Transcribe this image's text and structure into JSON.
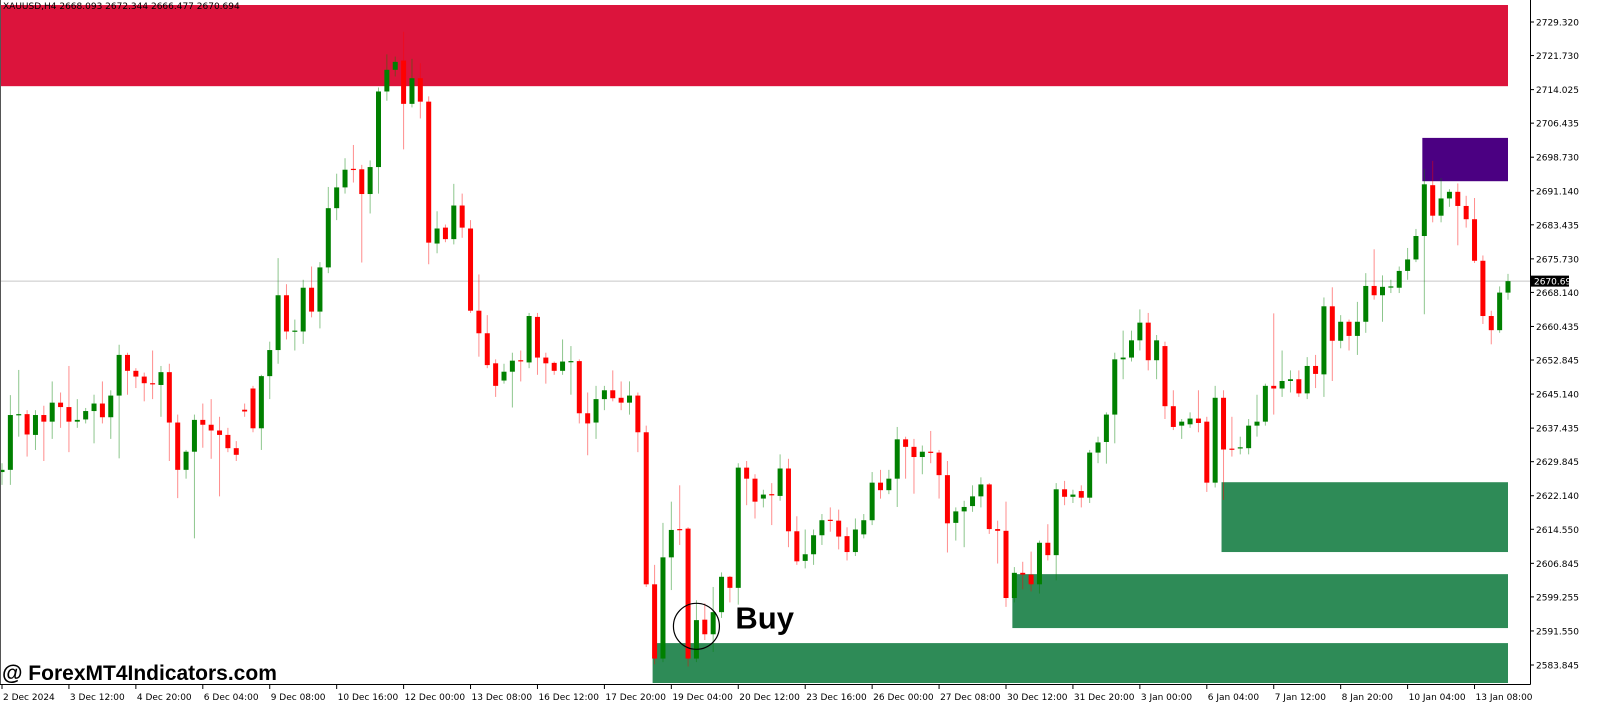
{
  "chart_data": {
    "type": "candlestick",
    "title": "XAUUSD,H4  2668.093 2672.344 2666.477 2670.694",
    "symbol": "XAUUSD",
    "timeframe": "H4",
    "current_price": "2670.694",
    "ylim": [
      2579.5,
      2735.0
    ],
    "grid": false,
    "colors": {
      "bull": "#008000",
      "bear": "#FF0000",
      "supply_zone": "#DC143C",
      "upper_zone": "#4B0082",
      "demand_zone": "#2E8B57",
      "current_price_line": "#C8C8C8",
      "current_price_label_bg": "#000000"
    },
    "y_ticks": [
      "2729.320",
      "2721.730",
      "2714.025",
      "2706.435",
      "2698.730",
      "2691.140",
      "2683.435",
      "2675.730",
      "2668.140",
      "2660.435",
      "2652.845",
      "2645.140",
      "2637.435",
      "2629.845",
      "2622.140",
      "2614.550",
      "2606.845",
      "2599.255",
      "2591.550",
      "2583.845"
    ],
    "x_ticks": [
      {
        "bar": 0,
        "label": "2 Dec 2024"
      },
      {
        "bar": 8,
        "label": "3 Dec 12:00"
      },
      {
        "bar": 16,
        "label": "4 Dec 20:00"
      },
      {
        "bar": 24,
        "label": "6 Dec 04:00"
      },
      {
        "bar": 32,
        "label": "9 Dec 08:00"
      },
      {
        "bar": 40,
        "label": "10 Dec 16:00"
      },
      {
        "bar": 48,
        "label": "12 Dec 00:00"
      },
      {
        "bar": 56,
        "label": "13 Dec 08:00"
      },
      {
        "bar": 64,
        "label": "16 Dec 12:00"
      },
      {
        "bar": 72,
        "label": "17 Dec 20:00"
      },
      {
        "bar": 80,
        "label": "19 Dec 04:00"
      },
      {
        "bar": 88,
        "label": "20 Dec 12:00"
      },
      {
        "bar": 96,
        "label": "23 Dec 16:00"
      },
      {
        "bar": 104,
        "label": "26 Dec 00:00"
      },
      {
        "bar": 112,
        "label": "27 Dec 08:00"
      },
      {
        "bar": 120,
        "label": "30 Dec 12:00"
      },
      {
        "bar": 128,
        "label": "31 Dec 20:00"
      },
      {
        "bar": 136,
        "label": "3 Jan 00:00"
      },
      {
        "bar": 144,
        "label": "6 Jan 04:00"
      },
      {
        "bar": 152,
        "label": "7 Jan 12:00"
      },
      {
        "bar": 160,
        "label": "8 Jan 20:00"
      },
      {
        "bar": 168,
        "label": "10 Jan 04:00"
      },
      {
        "bar": 176,
        "label": "13 Jan 08:00"
      }
    ],
    "zones": [
      {
        "name": "supply-zone",
        "color": "#DC143C",
        "start_bar": 0,
        "top": 2733.2,
        "bottom": 2714.8
      },
      {
        "name": "upper-zone",
        "color": "#4B0082",
        "start_bar": 170,
        "top": 2703.1,
        "bottom": 2693.3
      },
      {
        "name": "demand-zone",
        "color": "#2E8B57",
        "start_bar": 146,
        "top": 2625.2,
        "bottom": 2609.4
      },
      {
        "name": "demand-zone",
        "color": "#2E8B57",
        "start_bar": 121,
        "top": 2604.4,
        "bottom": 2592.2
      },
      {
        "name": "demand-zone",
        "color": "#2E8B57",
        "start_bar": 78,
        "top": 2588.8,
        "bottom": 2579.5
      }
    ],
    "annotations": [
      {
        "type": "buy-signal",
        "label": "Buy",
        "bar": 83,
        "price": 2592.6
      }
    ],
    "ohlc_fields": [
      "open",
      "high",
      "low",
      "close"
    ],
    "candles": [
      [
        2627.5,
        2629.5,
        2624.6,
        2628.0
      ],
      [
        2628.0,
        2644.9,
        2624.6,
        2640.4
      ],
      [
        2640.4,
        2650.6,
        2635.5,
        2640.6
      ],
      [
        2640.6,
        2641.5,
        2631.0,
        2636.0
      ],
      [
        2635.9,
        2641.5,
        2632.5,
        2640.4
      ],
      [
        2640.4,
        2642.5,
        2630.0,
        2638.9
      ],
      [
        2638.9,
        2648.0,
        2635.0,
        2643.2
      ],
      [
        2643.2,
        2645.5,
        2637.5,
        2642.2
      ],
      [
        2642.2,
        2651.5,
        2632.0,
        2638.9
      ],
      [
        2638.9,
        2644.0,
        2637.5,
        2639.3
      ],
      [
        2639.4,
        2642.0,
        2638.5,
        2641.3
      ],
      [
        2641.3,
        2645.0,
        2634.0,
        2643.0
      ],
      [
        2643.0,
        2648.0,
        2638.5,
        2639.9
      ],
      [
        2639.9,
        2646.0,
        2635.0,
        2644.8
      ],
      [
        2644.8,
        2656.3,
        2630.6,
        2654.0
      ],
      [
        2654.0,
        2654.5,
        2645.0,
        2650.4
      ],
      [
        2650.4,
        2651.0,
        2646.5,
        2649.1
      ],
      [
        2649.1,
        2650.0,
        2643.5,
        2647.6
      ],
      [
        2647.6,
        2655.0,
        2644.0,
        2647.4
      ],
      [
        2647.2,
        2651.5,
        2640.0,
        2650.1
      ],
      [
        2650.1,
        2652.0,
        2630.0,
        2638.7
      ],
      [
        2638.7,
        2640.5,
        2621.6,
        2628.0
      ],
      [
        2628.0,
        2632.5,
        2626.0,
        2632.1
      ],
      [
        2632.1,
        2640.5,
        2612.5,
        2639.3
      ],
      [
        2639.3,
        2643.0,
        2633.0,
        2638.2
      ],
      [
        2638.2,
        2644.0,
        2630.5,
        2636.9
      ],
      [
        2636.9,
        2640.0,
        2622.0,
        2635.9
      ],
      [
        2635.9,
        2637.5,
        2632.0,
        2632.9
      ],
      [
        2632.9,
        2634.5,
        2630.0,
        2631.4
      ],
      [
        2641.6,
        2643.0,
        2640.0,
        2641.2
      ],
      [
        2646.4,
        2647.0,
        2636.5,
        2637.4
      ],
      [
        2637.4,
        2649.5,
        2632.5,
        2649.2
      ],
      [
        2649.2,
        2657.0,
        2644.0,
        2655.1
      ],
      [
        2655.1,
        2675.9,
        2652.0,
        2667.5
      ],
      [
        2667.5,
        2670.0,
        2657.5,
        2659.3
      ],
      [
        2659.3,
        2662.0,
        2655.0,
        2659.5
      ],
      [
        2659.3,
        2671.0,
        2656.5,
        2669.2
      ],
      [
        2669.2,
        2674.0,
        2662.5,
        2663.8
      ],
      [
        2663.8,
        2675.0,
        2660.0,
        2673.8
      ],
      [
        2673.8,
        2692.0,
        2672.5,
        2687.2
      ],
      [
        2687.2,
        2695.0,
        2684.5,
        2691.9
      ],
      [
        2691.9,
        2698.5,
        2690.5,
        2695.9
      ],
      [
        2696.1,
        2701.5,
        2693.0,
        2695.9
      ],
      [
        2696.0,
        2697.0,
        2674.9,
        2690.4
      ],
      [
        2690.4,
        2698.0,
        2686.0,
        2696.5
      ],
      [
        2696.5,
        2714.5,
        2690.5,
        2713.6
      ],
      [
        2713.6,
        2722.0,
        2711.5,
        2718.5
      ],
      [
        2718.5,
        2721.5,
        2717.0,
        2720.3
      ],
      [
        2720.6,
        2727.1,
        2700.5,
        2710.8
      ],
      [
        2710.8,
        2721.0,
        2710.0,
        2716.6
      ],
      [
        2716.6,
        2720.0,
        2707.5,
        2711.3
      ],
      [
        2711.3,
        2712.5,
        2674.5,
        2679.4
      ],
      [
        2679.2,
        2686.5,
        2677.0,
        2682.6
      ],
      [
        2682.8,
        2683.5,
        2679.5,
        2680.2
      ],
      [
        2680.2,
        2692.7,
        2679.0,
        2687.8
      ],
      [
        2687.8,
        2690.5,
        2680.5,
        2682.8
      ],
      [
        2682.6,
        2684.5,
        2663.5,
        2664.0
      ],
      [
        2664.0,
        2672.2,
        2653.6,
        2658.9
      ],
      [
        2658.9,
        2663.0,
        2651.0,
        2651.7
      ],
      [
        2652.1,
        2653.0,
        2644.5,
        2647.0
      ],
      [
        2648.2,
        2652.0,
        2647.5,
        2650.2
      ],
      [
        2650.2,
        2654.5,
        2642.1,
        2652.7
      ],
      [
        2652.8,
        2655.0,
        2648.0,
        2652.6
      ],
      [
        2652.3,
        2663.5,
        2651.0,
        2662.8
      ],
      [
        2662.6,
        2663.5,
        2649.5,
        2653.4
      ],
      [
        2653.4,
        2654.5,
        2647.5,
        2652.1
      ],
      [
        2652.2,
        2652.5,
        2649.5,
        2650.4
      ],
      [
        2650.4,
        2657.5,
        2649.5,
        2652.5
      ],
      [
        2652.5,
        2656.0,
        2645.0,
        2652.6
      ],
      [
        2652.6,
        2653.0,
        2638.5,
        2640.8
      ],
      [
        2640.8,
        2645.5,
        2631.3,
        2638.5
      ],
      [
        2638.7,
        2647.0,
        2635.0,
        2644.0
      ],
      [
        2644.0,
        2647.0,
        2641.5,
        2646.0
      ],
      [
        2646.0,
        2650.5,
        2643.5,
        2644.2
      ],
      [
        2644.3,
        2648.0,
        2641.5,
        2643.2
      ],
      [
        2643.2,
        2648.0,
        2640.5,
        2644.8
      ],
      [
        2644.8,
        2645.5,
        2632.0,
        2636.5
      ],
      [
        2636.5,
        2638.0,
        2601.5,
        2602.1
      ],
      [
        2602.1,
        2606.5,
        2584.0,
        2585.3
      ],
      [
        2585.3,
        2616.0,
        2584.5,
        2608.2
      ],
      [
        2608.2,
        2620.8,
        2600.8,
        2614.4
      ],
      [
        2614.6,
        2624.5,
        2611.0,
        2614.4
      ],
      [
        2614.7,
        2615.0,
        2583.5,
        2585.3
      ],
      [
        2585.3,
        2598.5,
        2584.5,
        2594.0
      ],
      [
        2594.1,
        2597.8,
        2589.5,
        2590.8
      ],
      [
        2590.8,
        2601.5,
        2586.8,
        2595.8
      ],
      [
        2595.8,
        2604.8,
        2594.5,
        2603.8
      ],
      [
        2603.8,
        2604.0,
        2598.0,
        2601.3
      ],
      [
        2601.3,
        2629.5,
        2597.5,
        2628.5
      ],
      [
        2628.5,
        2630.0,
        2620.0,
        2626.0
      ],
      [
        2626.0,
        2627.0,
        2617.0,
        2620.8
      ],
      [
        2621.5,
        2623.5,
        2619.5,
        2622.4
      ],
      [
        2622.5,
        2625.0,
        2615.5,
        2622.3
      ],
      [
        2622.1,
        2631.5,
        2621.0,
        2628.3
      ],
      [
        2628.3,
        2630.5,
        2610.5,
        2614.1
      ],
      [
        2614.1,
        2617.5,
        2606.5,
        2607.3
      ],
      [
        2607.4,
        2614.5,
        2605.7,
        2608.9
      ],
      [
        2608.9,
        2614.5,
        2606.5,
        2613.2
      ],
      [
        2613.2,
        2618.0,
        2611.0,
        2616.6
      ],
      [
        2616.7,
        2619.5,
        2614.0,
        2616.5
      ],
      [
        2616.5,
        2619.0,
        2610.0,
        2612.9
      ],
      [
        2613.0,
        2615.0,
        2607.5,
        2609.4
      ],
      [
        2609.4,
        2617.0,
        2608.5,
        2614.5
      ],
      [
        2613.4,
        2618.0,
        2612.5,
        2616.6
      ],
      [
        2616.6,
        2627.5,
        2615.5,
        2625.1
      ],
      [
        2625.1,
        2628.0,
        2621.5,
        2623.4
      ],
      [
        2623.4,
        2628.0,
        2622.5,
        2626.0
      ],
      [
        2626.0,
        2637.7,
        2619.6,
        2634.9
      ],
      [
        2634.9,
        2635.5,
        2626.0,
        2633.2
      ],
      [
        2633.2,
        2635.0,
        2622.6,
        2630.9
      ],
      [
        2630.9,
        2633.5,
        2627.0,
        2632.1
      ],
      [
        2632.1,
        2636.8,
        2629.5,
        2631.9
      ],
      [
        2631.9,
        2632.5,
        2621.5,
        2626.8
      ],
      [
        2626.8,
        2630.0,
        2609.3,
        2615.9
      ],
      [
        2616.0,
        2619.5,
        2612.0,
        2618.6
      ],
      [
        2618.6,
        2621.0,
        2610.5,
        2619.6
      ],
      [
        2619.8,
        2624.5,
        2618.5,
        2622.0
      ],
      [
        2622.0,
        2626.3,
        2619.5,
        2624.7
      ],
      [
        2624.7,
        2625.0,
        2613.5,
        2614.6
      ],
      [
        2614.6,
        2616.5,
        2606.8,
        2614.2
      ],
      [
        2614.2,
        2620.8,
        2597.0,
        2599.0
      ],
      [
        2599.0,
        2606.0,
        2598.0,
        2604.7
      ],
      [
        2604.7,
        2607.2,
        2601.0,
        2604.3
      ],
      [
        2604.3,
        2609.5,
        2600.5,
        2602.1
      ],
      [
        2602.1,
        2612.0,
        2600.0,
        2611.5
      ],
      [
        2611.5,
        2615.7,
        2607.5,
        2608.7
      ],
      [
        2608.7,
        2625.0,
        2603.0,
        2623.6
      ],
      [
        2623.6,
        2625.5,
        2620.0,
        2621.9
      ],
      [
        2621.9,
        2623.5,
        2620.5,
        2622.4
      ],
      [
        2623.2,
        2624.5,
        2619.5,
        2621.7
      ],
      [
        2621.7,
        2632.5,
        2620.5,
        2631.9
      ],
      [
        2631.9,
        2635.5,
        2629.5,
        2634.2
      ],
      [
        2634.3,
        2641.0,
        2629.4,
        2640.5
      ],
      [
        2640.5,
        2654.5,
        2634.0,
        2653.0
      ],
      [
        2653.0,
        2659.5,
        2648.5,
        2653.4
      ],
      [
        2653.4,
        2659.5,
        2652.5,
        2657.3
      ],
      [
        2657.3,
        2664.3,
        2655.0,
        2661.3
      ],
      [
        2661.3,
        2663.5,
        2650.5,
        2652.8
      ],
      [
        2652.8,
        2658.5,
        2648.5,
        2657.3
      ],
      [
        2656.0,
        2657.0,
        2639.5,
        2642.4
      ],
      [
        2642.4,
        2646.0,
        2637.0,
        2637.7
      ],
      [
        2638.0,
        2639.5,
        2635.0,
        2638.9
      ],
      [
        2638.3,
        2641.0,
        2637.5,
        2639.6
      ],
      [
        2639.6,
        2646.0,
        2636.5,
        2638.6
      ],
      [
        2638.9,
        2640.0,
        2623.0,
        2625.1
      ],
      [
        2625.1,
        2647.0,
        2624.0,
        2644.3
      ],
      [
        2644.3,
        2646.0,
        2621.2,
        2632.6
      ],
      [
        2632.8,
        2640.0,
        2631.0,
        2632.6
      ],
      [
        2632.9,
        2635.5,
        2631.5,
        2633.1
      ],
      [
        2632.9,
        2639.5,
        2631.5,
        2638.0
      ],
      [
        2638.0,
        2645.0,
        2635.5,
        2638.9
      ],
      [
        2638.9,
        2647.5,
        2638.0,
        2647.0
      ],
      [
        2647.0,
        2663.4,
        2640.5,
        2646.4
      ],
      [
        2646.4,
        2655.0,
        2644.5,
        2648.1
      ],
      [
        2648.1,
        2650.5,
        2645.5,
        2648.5
      ],
      [
        2648.5,
        2650.5,
        2644.5,
        2645.3
      ],
      [
        2645.3,
        2653.5,
        2644.0,
        2651.5
      ],
      [
        2651.5,
        2654.0,
        2646.5,
        2649.7
      ],
      [
        2649.6,
        2667.0,
        2644.5,
        2665.0
      ],
      [
        2665.0,
        2669.3,
        2648.1,
        2657.2
      ],
      [
        2657.2,
        2663.0,
        2655.5,
        2661.5
      ],
      [
        2661.5,
        2662.0,
        2655.0,
        2658.3
      ],
      [
        2658.3,
        2666.0,
        2654.0,
        2661.5
      ],
      [
        2661.5,
        2672.5,
        2659.0,
        2669.6
      ],
      [
        2669.6,
        2677.9,
        2666.5,
        2667.5
      ],
      [
        2667.5,
        2672.0,
        2661.5,
        2669.4
      ],
      [
        2669.3,
        2671.0,
        2668.0,
        2669.5
      ],
      [
        2669.2,
        2674.0,
        2668.0,
        2673.0
      ],
      [
        2673.0,
        2678.2,
        2671.0,
        2675.6
      ],
      [
        2675.6,
        2682.5,
        2675.0,
        2680.9
      ],
      [
        2680.9,
        2696.0,
        2663.2,
        2692.6
      ],
      [
        2692.4,
        2697.9,
        2684.0,
        2685.5
      ],
      [
        2685.5,
        2694.0,
        2684.0,
        2689.4
      ],
      [
        2689.4,
        2691.5,
        2687.5,
        2690.9
      ],
      [
        2690.9,
        2692.8,
        2678.8,
        2687.7
      ],
      [
        2687.7,
        2690.0,
        2682.8,
        2684.7
      ],
      [
        2684.7,
        2689.5,
        2674.8,
        2675.3
      ],
      [
        2675.3,
        2676.5,
        2661.0,
        2662.8
      ],
      [
        2662.8,
        2664.0,
        2656.4,
        2659.6
      ],
      [
        2659.6,
        2669.5,
        2659.0,
        2668.1
      ],
      [
        2668.093,
        2672.344,
        2666.477,
        2670.694
      ]
    ]
  },
  "watermark": "@ ForexMT4Indicators.com"
}
